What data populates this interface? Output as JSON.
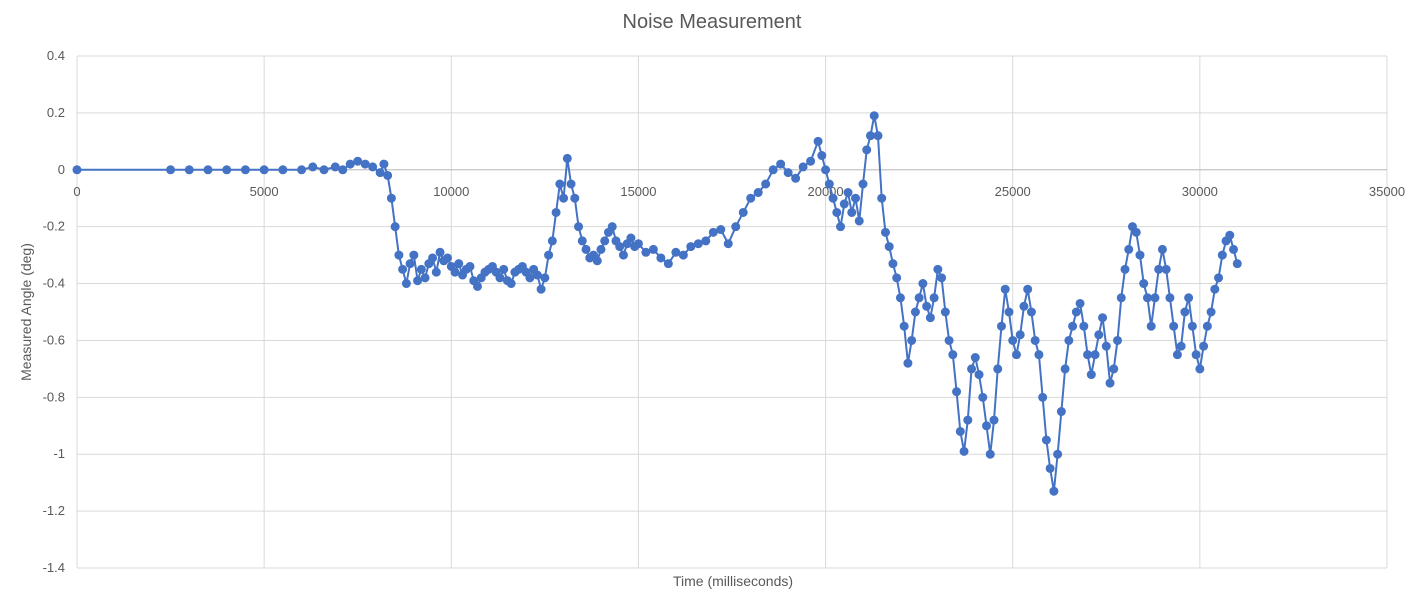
{
  "chart_data": {
    "type": "line",
    "title": "Noise Measurement",
    "xlabel": "Time (milliseconds)",
    "ylabel": "Measured Angle (deg)",
    "xlim": [
      0,
      35000
    ],
    "ylim": [
      -1.4,
      0.4
    ],
    "xticks": [
      0,
      5000,
      10000,
      15000,
      20000,
      25000,
      30000,
      35000
    ],
    "yticks": [
      0.4,
      0.2,
      0,
      -0.2,
      -0.4,
      -0.6,
      -0.8,
      -1,
      -1.2,
      -1.4
    ],
    "grid": true,
    "legend": "none",
    "series": [
      {
        "color": "#4472C4",
        "markers": true,
        "points": [
          [
            0,
            0
          ],
          [
            2500,
            0
          ],
          [
            3000,
            0
          ],
          [
            3500,
            0
          ],
          [
            4000,
            0
          ],
          [
            4500,
            0
          ],
          [
            5000,
            0
          ],
          [
            5500,
            0
          ],
          [
            6000,
            0
          ],
          [
            6300,
            0.01
          ],
          [
            6600,
            0
          ],
          [
            6900,
            0.01
          ],
          [
            7100,
            0
          ],
          [
            7300,
            0.02
          ],
          [
            7500,
            0.03
          ],
          [
            7700,
            0.02
          ],
          [
            7900,
            0.01
          ],
          [
            8100,
            -0.01
          ],
          [
            8200,
            0.02
          ],
          [
            8300,
            -0.02
          ],
          [
            8400,
            -0.1
          ],
          [
            8500,
            -0.2
          ],
          [
            8600,
            -0.3
          ],
          [
            8700,
            -0.35
          ],
          [
            8800,
            -0.4
          ],
          [
            8900,
            -0.33
          ],
          [
            9000,
            -0.3
          ],
          [
            9100,
            -0.39
          ],
          [
            9200,
            -0.35
          ],
          [
            9300,
            -0.38
          ],
          [
            9400,
            -0.33
          ],
          [
            9500,
            -0.31
          ],
          [
            9600,
            -0.36
          ],
          [
            9700,
            -0.29
          ],
          [
            9800,
            -0.32
          ],
          [
            9900,
            -0.31
          ],
          [
            10000,
            -0.34
          ],
          [
            10100,
            -0.36
          ],
          [
            10200,
            -0.33
          ],
          [
            10300,
            -0.37
          ],
          [
            10400,
            -0.35
          ],
          [
            10500,
            -0.34
          ],
          [
            10600,
            -0.39
          ],
          [
            10700,
            -0.41
          ],
          [
            10800,
            -0.38
          ],
          [
            10900,
            -0.36
          ],
          [
            11000,
            -0.35
          ],
          [
            11100,
            -0.34
          ],
          [
            11200,
            -0.36
          ],
          [
            11300,
            -0.38
          ],
          [
            11400,
            -0.35
          ],
          [
            11500,
            -0.39
          ],
          [
            11600,
            -0.4
          ],
          [
            11700,
            -0.36
          ],
          [
            11800,
            -0.35
          ],
          [
            11900,
            -0.34
          ],
          [
            12000,
            -0.36
          ],
          [
            12100,
            -0.38
          ],
          [
            12200,
            -0.35
          ],
          [
            12300,
            -0.37
          ],
          [
            12400,
            -0.42
          ],
          [
            12500,
            -0.38
          ],
          [
            12600,
            -0.3
          ],
          [
            12700,
            -0.25
          ],
          [
            12800,
            -0.15
          ],
          [
            12900,
            -0.05
          ],
          [
            13000,
            -0.1
          ],
          [
            13100,
            0.04
          ],
          [
            13200,
            -0.05
          ],
          [
            13300,
            -0.1
          ],
          [
            13400,
            -0.2
          ],
          [
            13500,
            -0.25
          ],
          [
            13600,
            -0.28
          ],
          [
            13700,
            -0.31
          ],
          [
            13800,
            -0.3
          ],
          [
            13900,
            -0.32
          ],
          [
            14000,
            -0.28
          ],
          [
            14100,
            -0.25
          ],
          [
            14200,
            -0.22
          ],
          [
            14300,
            -0.2
          ],
          [
            14400,
            -0.25
          ],
          [
            14500,
            -0.27
          ],
          [
            14600,
            -0.3
          ],
          [
            14700,
            -0.26
          ],
          [
            14800,
            -0.24
          ],
          [
            14900,
            -0.27
          ],
          [
            15000,
            -0.26
          ],
          [
            15200,
            -0.29
          ],
          [
            15400,
            -0.28
          ],
          [
            15600,
            -0.31
          ],
          [
            15800,
            -0.33
          ],
          [
            16000,
            -0.29
          ],
          [
            16200,
            -0.3
          ],
          [
            16400,
            -0.27
          ],
          [
            16600,
            -0.26
          ],
          [
            16800,
            -0.25
          ],
          [
            17000,
            -0.22
          ],
          [
            17200,
            -0.21
          ],
          [
            17400,
            -0.26
          ],
          [
            17600,
            -0.2
          ],
          [
            17800,
            -0.15
          ],
          [
            18000,
            -0.1
          ],
          [
            18200,
            -0.08
          ],
          [
            18400,
            -0.05
          ],
          [
            18600,
            0
          ],
          [
            18800,
            0.02
          ],
          [
            19000,
            -0.01
          ],
          [
            19200,
            -0.03
          ],
          [
            19400,
            0.01
          ],
          [
            19600,
            0.03
          ],
          [
            19800,
            0.1
          ],
          [
            19900,
            0.05
          ],
          [
            20000,
            0
          ],
          [
            20100,
            -0.05
          ],
          [
            20200,
            -0.1
          ],
          [
            20300,
            -0.15
          ],
          [
            20400,
            -0.2
          ],
          [
            20500,
            -0.12
          ],
          [
            20600,
            -0.08
          ],
          [
            20700,
            -0.15
          ],
          [
            20800,
            -0.1
          ],
          [
            20900,
            -0.18
          ],
          [
            21000,
            -0.05
          ],
          [
            21100,
            0.07
          ],
          [
            21200,
            0.12
          ],
          [
            21300,
            0.19
          ],
          [
            21400,
            0.12
          ],
          [
            21500,
            -0.1
          ],
          [
            21600,
            -0.22
          ],
          [
            21700,
            -0.27
          ],
          [
            21800,
            -0.33
          ],
          [
            21900,
            -0.38
          ],
          [
            22000,
            -0.45
          ],
          [
            22100,
            -0.55
          ],
          [
            22200,
            -0.68
          ],
          [
            22300,
            -0.6
          ],
          [
            22400,
            -0.5
          ],
          [
            22500,
            -0.45
          ],
          [
            22600,
            -0.4
          ],
          [
            22700,
            -0.48
          ],
          [
            22800,
            -0.52
          ],
          [
            22900,
            -0.45
          ],
          [
            23000,
            -0.35
          ],
          [
            23100,
            -0.38
          ],
          [
            23200,
            -0.5
          ],
          [
            23300,
            -0.6
          ],
          [
            23400,
            -0.65
          ],
          [
            23500,
            -0.78
          ],
          [
            23600,
            -0.92
          ],
          [
            23700,
            -0.99
          ],
          [
            23800,
            -0.88
          ],
          [
            23900,
            -0.7
          ],
          [
            24000,
            -0.66
          ],
          [
            24100,
            -0.72
          ],
          [
            24200,
            -0.8
          ],
          [
            24300,
            -0.9
          ],
          [
            24400,
            -1.0
          ],
          [
            24500,
            -0.88
          ],
          [
            24600,
            -0.7
          ],
          [
            24700,
            -0.55
          ],
          [
            24800,
            -0.42
          ],
          [
            24900,
            -0.5
          ],
          [
            25000,
            -0.6
          ],
          [
            25100,
            -0.65
          ],
          [
            25200,
            -0.58
          ],
          [
            25300,
            -0.48
          ],
          [
            25400,
            -0.42
          ],
          [
            25500,
            -0.5
          ],
          [
            25600,
            -0.6
          ],
          [
            25700,
            -0.65
          ],
          [
            25800,
            -0.8
          ],
          [
            25900,
            -0.95
          ],
          [
            26000,
            -1.05
          ],
          [
            26100,
            -1.13
          ],
          [
            26200,
            -1.0
          ],
          [
            26300,
            -0.85
          ],
          [
            26400,
            -0.7
          ],
          [
            26500,
            -0.6
          ],
          [
            26600,
            -0.55
          ],
          [
            26700,
            -0.5
          ],
          [
            26800,
            -0.47
          ],
          [
            26900,
            -0.55
          ],
          [
            27000,
            -0.65
          ],
          [
            27100,
            -0.72
          ],
          [
            27200,
            -0.65
          ],
          [
            27300,
            -0.58
          ],
          [
            27400,
            -0.52
          ],
          [
            27500,
            -0.62
          ],
          [
            27600,
            -0.75
          ],
          [
            27700,
            -0.7
          ],
          [
            27800,
            -0.6
          ],
          [
            27900,
            -0.45
          ],
          [
            28000,
            -0.35
          ],
          [
            28100,
            -0.28
          ],
          [
            28200,
            -0.2
          ],
          [
            28300,
            -0.22
          ],
          [
            28400,
            -0.3
          ],
          [
            28500,
            -0.4
          ],
          [
            28600,
            -0.45
          ],
          [
            28700,
            -0.55
          ],
          [
            28800,
            -0.45
          ],
          [
            28900,
            -0.35
          ],
          [
            29000,
            -0.28
          ],
          [
            29100,
            -0.35
          ],
          [
            29200,
            -0.45
          ],
          [
            29300,
            -0.55
          ],
          [
            29400,
            -0.65
          ],
          [
            29500,
            -0.62
          ],
          [
            29600,
            -0.5
          ],
          [
            29700,
            -0.45
          ],
          [
            29800,
            -0.55
          ],
          [
            29900,
            -0.65
          ],
          [
            30000,
            -0.7
          ],
          [
            30100,
            -0.62
          ],
          [
            30200,
            -0.55
          ],
          [
            30300,
            -0.5
          ],
          [
            30400,
            -0.42
          ],
          [
            30500,
            -0.38
          ],
          [
            30600,
            -0.3
          ],
          [
            30700,
            -0.25
          ],
          [
            30800,
            -0.23
          ],
          [
            30900,
            -0.28
          ],
          [
            31000,
            -0.33
          ]
        ]
      }
    ]
  }
}
